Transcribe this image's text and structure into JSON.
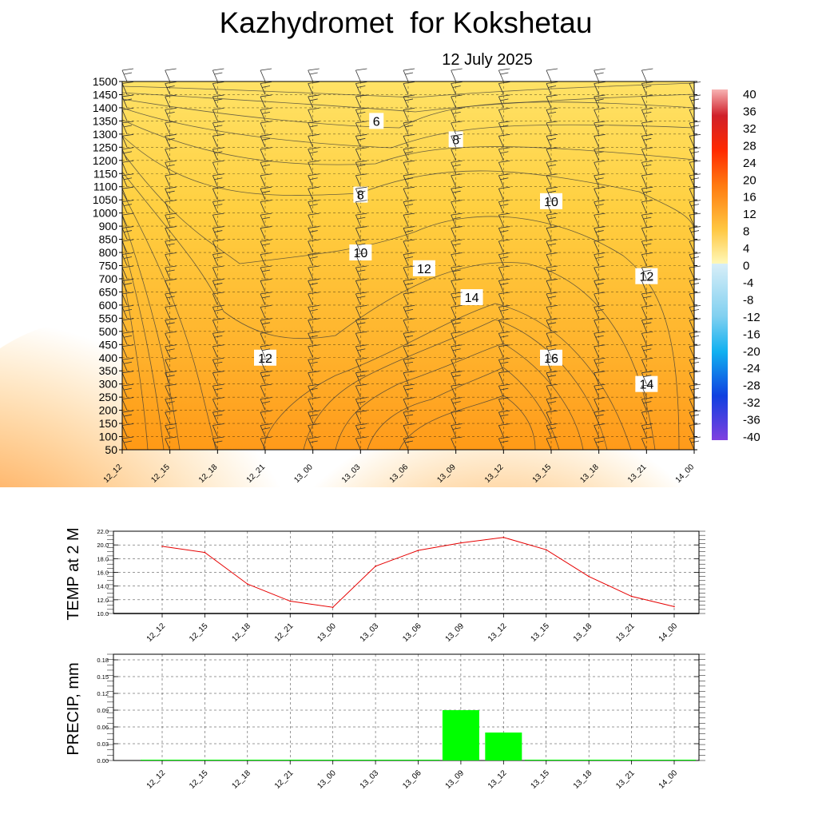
{
  "header": {
    "title": "Kazhydromet  for Kokshetau",
    "date": "12 July 2025"
  },
  "colors": {
    "warm_low": "#ffe066",
    "warm_mid": "#ffb833",
    "warm_high": "#ff7a00",
    "temp_line": "#e60000",
    "precip_bar": "#00ff00"
  },
  "time_labels": [
    "12_12",
    "12_15",
    "12_18",
    "12_21",
    "13_00",
    "13_03",
    "13_06",
    "13_09",
    "13_12",
    "13_15",
    "13_18",
    "13_21",
    "14_00"
  ],
  "chart_data": [
    {
      "type": "heatmap",
      "title": "Kazhydromet  for Kokshetau",
      "subtitle": "12 July 2025",
      "x_categories": [
        "12_12",
        "12_15",
        "12_18",
        "12_21",
        "13_00",
        "13_03",
        "13_06",
        "13_09",
        "13_12",
        "13_15",
        "13_18",
        "13_21",
        "14_00"
      ],
      "y_levels": [
        50,
        100,
        150,
        200,
        250,
        300,
        350,
        400,
        450,
        500,
        550,
        600,
        650,
        700,
        750,
        800,
        850,
        900,
        1000,
        1050,
        1100,
        1150,
        1200,
        1250,
        1300,
        1350,
        1400,
        1450,
        1500
      ],
      "colorbar": {
        "labels": [
          "40",
          "36",
          "32",
          "28",
          "24",
          "20",
          "16",
          "12",
          "8",
          "4",
          "0",
          "-4",
          "-8",
          "-12",
          "-16",
          "-20",
          "-24",
          "-28",
          "-32",
          "-36",
          "-40"
        ],
        "range": [
          -40,
          40
        ]
      },
      "contour_labels": [
        {
          "text": "6",
          "x": "13_04",
          "y": 1350
        },
        {
          "text": "8",
          "x": "13_09",
          "y": 1280
        },
        {
          "text": "8",
          "x": "13_03",
          "y": 1070
        },
        {
          "text": "10",
          "x": "13_15",
          "y": 1045
        },
        {
          "text": "10",
          "x": "13_03",
          "y": 800
        },
        {
          "text": "12",
          "x": "13_07",
          "y": 740
        },
        {
          "text": "12",
          "x": "13_21",
          "y": 710
        },
        {
          "text": "14",
          "x": "13_10",
          "y": 630
        },
        {
          "text": "12",
          "x": "12_21",
          "y": 400
        },
        {
          "text": "16",
          "x": "13_15",
          "y": 400
        },
        {
          "text": "14",
          "x": "13_21",
          "y": 300
        }
      ],
      "grid": true
    },
    {
      "type": "line",
      "ylabel": "TEMP at 2 M",
      "x": [
        "12_12",
        "12_15",
        "12_18",
        "12_21",
        "13_00",
        "13_03",
        "13_06",
        "13_09",
        "13_12",
        "13_15",
        "13_18",
        "13_21",
        "14_00"
      ],
      "values": [
        19.8,
        18.9,
        14.3,
        11.8,
        10.9,
        16.9,
        19.2,
        20.3,
        21.1,
        19.3,
        15.4,
        12.5,
        11.0
      ],
      "ylim": [
        10.0,
        22.0
      ],
      "yticks": [
        "22.0",
        "20.0",
        "18.0",
        "16.0",
        "14.0",
        "12.0",
        "10.0"
      ],
      "grid": true
    },
    {
      "type": "bar",
      "ylabel": "PRECIP, mm",
      "categories": [
        "12_12",
        "12_15",
        "12_18",
        "12_21",
        "13_00",
        "13_03",
        "13_06",
        "13_09",
        "13_12",
        "13_15",
        "13_18",
        "13_21",
        "14_00"
      ],
      "values": [
        0,
        0,
        0,
        0,
        0,
        0,
        0,
        0.09,
        0.05,
        0,
        0,
        0,
        0
      ],
      "ylim": [
        0,
        0.19
      ],
      "yticks": [
        "0.18",
        "0.15",
        "0.12",
        "0.09",
        "0.06",
        "0.03",
        "0.00"
      ],
      "grid": true
    }
  ]
}
